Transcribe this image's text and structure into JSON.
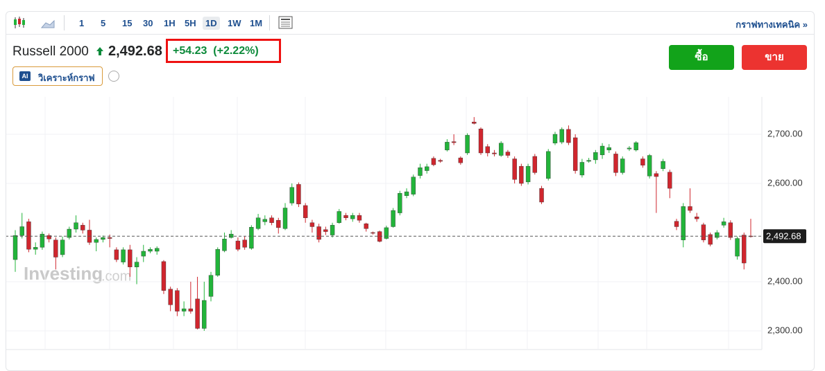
{
  "toolbar": {
    "intervals": [
      "1",
      "5",
      "15",
      "30",
      "1H",
      "5H",
      "1D",
      "1W",
      "1M"
    ],
    "active": "1D",
    "link": "กราฟทางเทคนิค »"
  },
  "header": {
    "name": "Russell 2000",
    "price": "2,492.68",
    "change": "+54.23",
    "change_pct": "(+2.22%)",
    "ai_badge": "AI",
    "ai_label": "วิเคราะห์กราฟ",
    "buy": "ซื้อ",
    "sell": "ขาย"
  },
  "watermark": {
    "brand": "Investing",
    "suffix": ".com"
  },
  "chart_data": {
    "type": "candlestick",
    "up_color": "#22b43a",
    "down_color": "#d0262e",
    "grid": true,
    "ylim": [
      2262,
      2769
    ],
    "yticks": [
      {
        "value": 2300,
        "label": "2,300.00"
      },
      {
        "value": 2400,
        "label": "2,400.00"
      },
      {
        "value": 2600,
        "label": "2,600.00"
      },
      {
        "value": 2700,
        "label": "2,700.00"
      }
    ],
    "last_price": {
      "value": 2492.68,
      "label": "2,492.68"
    },
    "open": [
      2445,
      2494,
      2522,
      2466,
      2470,
      2494,
      2485,
      2455,
      2490,
      2507,
      2515,
      2505,
      2480,
      2486,
      2490,
      2465,
      2440,
      2465,
      2430,
      2452,
      2462,
      2462,
      2441,
      2385,
      2382,
      2340,
      2345,
      2365,
      2305,
      2370,
      2413,
      2463,
      2490,
      2483,
      2485,
      2468,
      2508,
      2522,
      2530,
      2525,
      2508,
      2560,
      2598,
      2555,
      2520,
      2512,
      2506,
      2495,
      2520,
      2535,
      2528,
      2535,
      2518,
      2500,
      2502,
      2488,
      2512,
      2540,
      2575,
      2578,
      2616,
      2626,
      2651,
      2647,
      2668,
      2685,
      2652,
      2662,
      2725,
      2711,
      2675,
      2662,
      2657,
      2664,
      2650,
      2635,
      2603,
      2655,
      2590,
      2610,
      2682,
      2684,
      2710,
      2693,
      2617,
      2645,
      2648,
      2658,
      2668,
      2660,
      2622,
      2670,
      2668,
      2650,
      2615,
      2620,
      2630,
      2623,
      2523,
      2485,
      2553,
      2532,
      2516,
      2496,
      2490,
      2515,
      2520,
      2452,
      2495,
      2493
    ],
    "high": [
      2505,
      2540,
      2528,
      2480,
      2502,
      2498,
      2490,
      2492,
      2512,
      2535,
      2520,
      2526,
      2490,
      2494,
      2496,
      2470,
      2470,
      2475,
      2450,
      2475,
      2470,
      2472,
      2444,
      2390,
      2387,
      2360,
      2400,
      2410,
      2400,
      2420,
      2470,
      2500,
      2505,
      2490,
      2492,
      2515,
      2538,
      2535,
      2535,
      2530,
      2560,
      2600,
      2602,
      2560,
      2526,
      2518,
      2512,
      2520,
      2548,
      2540,
      2540,
      2540,
      2520,
      2502,
      2504,
      2514,
      2550,
      2585,
      2590,
      2618,
      2640,
      2640,
      2655,
      2650,
      2690,
      2700,
      2655,
      2702,
      2735,
      2714,
      2680,
      2668,
      2686,
      2668,
      2655,
      2640,
      2640,
      2660,
      2595,
      2670,
      2705,
      2714,
      2718,
      2700,
      2650,
      2652,
      2668,
      2682,
      2680,
      2665,
      2655,
      2676,
      2686,
      2655,
      2660,
      2625,
      2650,
      2628,
      2528,
      2560,
      2590,
      2540,
      2520,
      2500,
      2505,
      2530,
      2525,
      2492,
      2500,
      2528
    ],
    "low": [
      2420,
      2488,
      2460,
      2455,
      2465,
      2480,
      2425,
      2450,
      2486,
      2500,
      2498,
      2475,
      2462,
      2480,
      2470,
      2440,
      2435,
      2410,
      2395,
      2440,
      2458,
      2455,
      2375,
      2340,
      2330,
      2330,
      2335,
      2303,
      2300,
      2360,
      2410,
      2460,
      2488,
      2462,
      2465,
      2465,
      2505,
      2515,
      2515,
      2498,
      2505,
      2555,
      2552,
      2520,
      2500,
      2480,
      2495,
      2490,
      2518,
      2525,
      2522,
      2520,
      2502,
      2496,
      2480,
      2486,
      2510,
      2535,
      2570,
      2574,
      2610,
      2620,
      2635,
      2642,
      2665,
      2678,
      2638,
      2658,
      2720,
      2658,
      2655,
      2655,
      2654,
      2652,
      2600,
      2595,
      2598,
      2618,
      2558,
      2606,
      2678,
      2680,
      2678,
      2620,
      2612,
      2642,
      2640,
      2650,
      2662,
      2615,
      2618,
      2666,
      2665,
      2632,
      2610,
      2540,
      2625,
      2570,
      2505,
      2470,
      2540,
      2522,
      2480,
      2472,
      2486,
      2510,
      2485,
      2445,
      2425,
      2490
    ],
    "close": [
      2494,
      2512,
      2466,
      2470,
      2497,
      2487,
      2450,
      2485,
      2507,
      2520,
      2505,
      2480,
      2486,
      2490,
      2488,
      2445,
      2465,
      2430,
      2440,
      2462,
      2466,
      2468,
      2382,
      2353,
      2340,
      2345,
      2340,
      2305,
      2362,
      2413,
      2466,
      2487,
      2497,
      2466,
      2470,
      2511,
      2530,
      2527,
      2520,
      2510,
      2550,
      2592,
      2558,
      2530,
      2512,
      2486,
      2502,
      2515,
      2543,
      2530,
      2535,
      2525,
      2508,
      2499,
      2482,
      2510,
      2545,
      2580,
      2583,
      2613,
      2632,
      2634,
      2638,
      2645,
      2684,
      2683,
      2642,
      2698,
      2722,
      2662,
      2662,
      2660,
      2682,
      2657,
      2608,
      2600,
      2635,
      2622,
      2562,
      2665,
      2700,
      2710,
      2683,
      2626,
      2643,
      2647,
      2663,
      2676,
      2673,
      2622,
      2650,
      2672,
      2683,
      2637,
      2657,
      2614,
      2645,
      2590,
      2512,
      2553,
      2545,
      2528,
      2485,
      2476,
      2500,
      2522,
      2490,
      2488,
      2438,
      2492.68
    ]
  }
}
